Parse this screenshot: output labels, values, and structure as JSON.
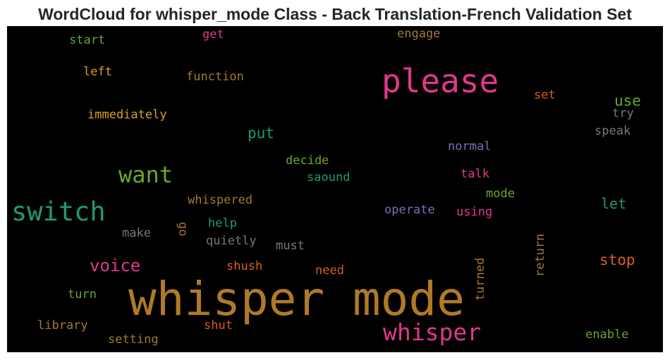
{
  "chart_data": {
    "type": "wordcloud",
    "title": "WordCloud for whisper_mode Class - Back Translation-French Validation Set",
    "background": "#000000",
    "words": [
      {
        "text": "whisper mode",
        "color": "#b07a25"
      },
      {
        "text": "please",
        "color": "#e0388a"
      },
      {
        "text": "switch",
        "color": "#1e9a76"
      },
      {
        "text": "whisper",
        "color": "#e0388a"
      },
      {
        "text": "want",
        "color": "#6aa62a"
      },
      {
        "text": "voice",
        "color": "#e0388a"
      },
      {
        "text": "stop",
        "color": "#d65f1e"
      },
      {
        "text": "use",
        "color": "#6aa62a"
      },
      {
        "text": "put",
        "color": "#1e9a76"
      },
      {
        "text": "let",
        "color": "#1e9a76"
      },
      {
        "text": "function",
        "color": "#a07a30"
      },
      {
        "text": "immediately",
        "color": "#d6a21f"
      },
      {
        "text": "left",
        "color": "#d6a21f"
      },
      {
        "text": "start",
        "color": "#6aa62a"
      },
      {
        "text": "get",
        "color": "#e0388a"
      },
      {
        "text": "engage",
        "color": "#a07a30"
      },
      {
        "text": "set",
        "color": "#d65f1e"
      },
      {
        "text": "try",
        "color": "#777777"
      },
      {
        "text": "speak",
        "color": "#777777"
      },
      {
        "text": "normal",
        "color": "#7570b3"
      },
      {
        "text": "decide",
        "color": "#6aa62a"
      },
      {
        "text": "saound",
        "color": "#1e9a76"
      },
      {
        "text": "talk",
        "color": "#e0388a"
      },
      {
        "text": "mode",
        "color": "#6aa62a"
      },
      {
        "text": "operate",
        "color": "#7570b3"
      },
      {
        "text": "using",
        "color": "#e0388a"
      },
      {
        "text": "whispered",
        "color": "#a07a30"
      },
      {
        "text": "go",
        "color": "#a07a30"
      },
      {
        "text": "help",
        "color": "#1e9a76"
      },
      {
        "text": "make",
        "color": "#777777"
      },
      {
        "text": "quietly",
        "color": "#777777"
      },
      {
        "text": "must",
        "color": "#777777"
      },
      {
        "text": "return",
        "color": "#a07a30"
      },
      {
        "text": "turned",
        "color": "#a07a30"
      },
      {
        "text": "shush",
        "color": "#d65f1e"
      },
      {
        "text": "need",
        "color": "#d65f1e"
      },
      {
        "text": "turn",
        "color": "#6aa62a"
      },
      {
        "text": "library",
        "color": "#a07a30"
      },
      {
        "text": "shut",
        "color": "#d65f1e"
      },
      {
        "text": "setting",
        "color": "#a07a30"
      },
      {
        "text": "enable",
        "color": "#6aa62a"
      }
    ]
  }
}
